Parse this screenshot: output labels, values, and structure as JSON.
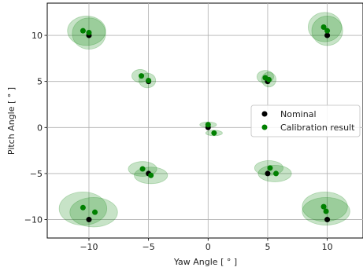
{
  "chart_data": {
    "type": "scatter",
    "xlabel": "Yaw Angle [ ° ]",
    "ylabel": "Pitch Angle [ ° ]",
    "xlim": [
      -13.5,
      13
    ],
    "ylim": [
      -12,
      13.5
    ],
    "xticks": [
      -10,
      -5,
      0,
      5,
      10
    ],
    "yticks": [
      -10,
      -5,
      0,
      5,
      10
    ],
    "grid": true,
    "legend_position": "right",
    "series": [
      {
        "name": "Nominal",
        "color": "#000000",
        "points": [
          [
            -10,
            10
          ],
          [
            10,
            10
          ],
          [
            -5,
            5
          ],
          [
            5,
            5
          ],
          [
            0,
            0
          ],
          [
            -5,
            -5
          ],
          [
            5,
            -5
          ],
          [
            -10,
            -10
          ],
          [
            10,
            -10
          ]
        ]
      },
      {
        "name": "Calibration result",
        "color": "#008000",
        "points": [
          [
            -10.5,
            10.5
          ],
          [
            -10.0,
            10.3
          ],
          [
            9.7,
            10.9
          ],
          [
            10.0,
            10.5
          ],
          [
            -5.6,
            5.6
          ],
          [
            -5.0,
            5.1
          ],
          [
            4.8,
            5.4
          ],
          [
            5.1,
            5.2
          ],
          [
            0.0,
            0.3
          ],
          [
            0.5,
            -0.6
          ],
          [
            -5.5,
            -4.5
          ],
          [
            -4.8,
            -5.2
          ],
          [
            5.2,
            -4.4
          ],
          [
            5.7,
            -5.0
          ],
          [
            -10.5,
            -8.7
          ],
          [
            -9.5,
            -9.2
          ],
          [
            9.7,
            -8.6
          ],
          [
            9.9,
            -9.1
          ]
        ],
        "ellipses": [
          [
            -10.2,
            10.5,
            1.6,
            1.6
          ],
          [
            -10.0,
            10.2,
            1.4,
            1.7
          ],
          [
            9.8,
            10.9,
            1.4,
            1.6
          ],
          [
            10.0,
            10.5,
            1.3,
            1.6
          ],
          [
            -5.7,
            5.6,
            0.7,
            0.7
          ],
          [
            -5.1,
            5.1,
            0.7,
            0.8
          ],
          [
            4.8,
            5.5,
            0.7,
            0.7
          ],
          [
            5.1,
            5.2,
            0.6,
            0.8
          ],
          [
            0.0,
            0.3,
            0.7,
            0.3
          ],
          [
            0.5,
            -0.6,
            0.7,
            0.3
          ],
          [
            -5.5,
            -4.5,
            1.2,
            0.8
          ],
          [
            -4.8,
            -5.2,
            1.4,
            0.9
          ],
          [
            5.1,
            -4.4,
            1.2,
            0.8
          ],
          [
            5.6,
            -5.0,
            1.4,
            0.9
          ],
          [
            -10.5,
            -8.8,
            2.0,
            1.8
          ],
          [
            -9.6,
            -9.2,
            2.0,
            1.6
          ],
          [
            9.8,
            -8.6,
            1.9,
            1.6
          ],
          [
            9.9,
            -9.1,
            2.0,
            1.5
          ]
        ]
      }
    ]
  }
}
